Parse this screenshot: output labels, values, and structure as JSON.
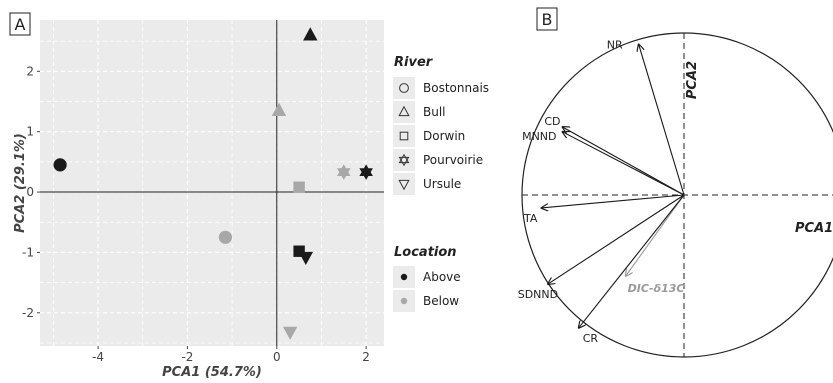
{
  "panels": {
    "a_label": "A",
    "b_label": "B"
  },
  "chart_data": [
    {
      "type": "scatter",
      "title": "",
      "xlabel": "PCA1 (54.7%)",
      "ylabel": "PCA2 (29.1%)",
      "xlim": [
        -5.3,
        2.4
      ],
      "ylim": [
        -2.55,
        2.85
      ],
      "xticks": [
        -4,
        -2,
        0,
        2
      ],
      "yticks": [
        -2,
        -1,
        0,
        1,
        2
      ],
      "xtick_labels": [
        "-4",
        "-2",
        "0",
        "2"
      ],
      "ytick_labels": [
        "-2",
        "-1",
        "0",
        "1",
        "2"
      ],
      "grid": true,
      "legend_position": "right",
      "legend": {
        "river_title": "River",
        "rivers": [
          {
            "name": "Bostonnais",
            "shape": "circle"
          },
          {
            "name": "Bull",
            "shape": "triangle-up"
          },
          {
            "name": "Dorwin",
            "shape": "square"
          },
          {
            "name": "Pourvoirie",
            "shape": "star"
          },
          {
            "name": "Ursule",
            "shape": "triangle-down"
          }
        ],
        "location_title": "Location",
        "locations": [
          {
            "name": "Above",
            "color": "#1a1a1a"
          },
          {
            "name": "Below",
            "color": "#a8a8a8"
          }
        ]
      },
      "points": [
        {
          "river": "Bostonnais",
          "location": "Above",
          "x": -4.85,
          "y": 0.45
        },
        {
          "river": "Bostonnais",
          "location": "Below",
          "x": -1.15,
          "y": -0.75
        },
        {
          "river": "Bull",
          "location": "Above",
          "x": 0.75,
          "y": 2.6
        },
        {
          "river": "Bull",
          "location": "Below",
          "x": 0.05,
          "y": 1.35
        },
        {
          "river": "Dorwin",
          "location": "Above",
          "x": 0.5,
          "y": -0.98
        },
        {
          "river": "Dorwin",
          "location": "Below",
          "x": 0.5,
          "y": 0.08
        },
        {
          "river": "Pourvoirie",
          "location": "Above",
          "x": 2.0,
          "y": 0.33
        },
        {
          "river": "Pourvoirie",
          "location": "Below",
          "x": 1.5,
          "y": 0.33
        },
        {
          "river": "Ursule",
          "location": "Above",
          "x": 0.65,
          "y": -1.08
        },
        {
          "river": "Ursule",
          "location": "Below",
          "x": 0.3,
          "y": -2.32
        }
      ]
    },
    {
      "type": "biplot",
      "xlabel": "PCA1",
      "ylabel": "PCA2",
      "vectors": [
        {
          "name": "NR",
          "x": -0.28,
          "y": 0.93,
          "color": "#1a1a1a"
        },
        {
          "name": "CD",
          "x": -0.75,
          "y": 0.42,
          "color": "#1a1a1a"
        },
        {
          "name": "MNND",
          "x": -0.75,
          "y": 0.39,
          "color": "#1a1a1a"
        },
        {
          "name": "TA",
          "x": -0.88,
          "y": -0.08,
          "color": "#1a1a1a"
        },
        {
          "name": "SDNND",
          "x": -0.84,
          "y": -0.55,
          "color": "#1a1a1a"
        },
        {
          "name": "DIC-δ13C",
          "x": -0.36,
          "y": -0.5,
          "color": "#9a9a9a"
        },
        {
          "name": "CR",
          "x": -0.65,
          "y": -0.82,
          "color": "#1a1a1a"
        }
      ]
    }
  ]
}
